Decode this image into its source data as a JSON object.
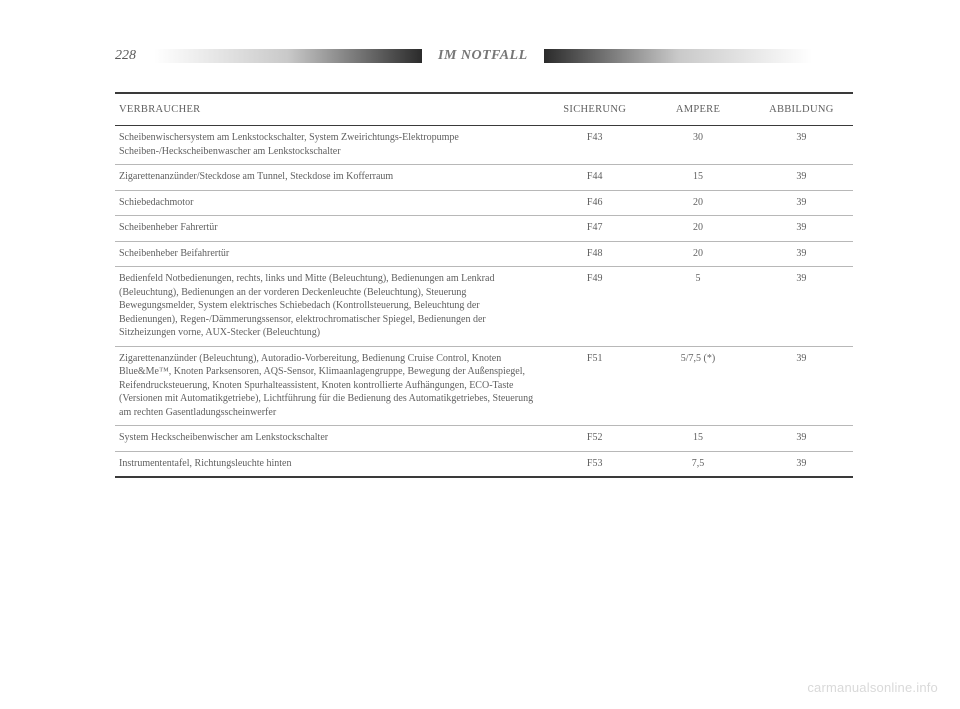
{
  "page_number": "228",
  "section_title": "IM NOTFALL",
  "columns": {
    "verbraucher": "VERBRAUCHER",
    "sicherung": "SICHERUNG",
    "ampere": "AMPERE",
    "abbildung": "ABBILDUNG"
  },
  "rows": [
    {
      "desc": "Scheibenwischersystem am Lenkstockschalter, System Zweirichtungs-Elektropumpe Scheiben-/Heckscheibenwascher am Lenkstockschalter",
      "fuse": "F43",
      "amp": "30",
      "fig": "39"
    },
    {
      "desc": "Zigarettenanzünder/Steckdose am Tunnel, Steckdose im Kofferraum",
      "fuse": "F44",
      "amp": "15",
      "fig": "39"
    },
    {
      "desc": "Schiebedachmotor",
      "fuse": "F46",
      "amp": "20",
      "fig": "39"
    },
    {
      "desc": "Scheibenheber Fahrertür",
      "fuse": "F47",
      "amp": "20",
      "fig": "39"
    },
    {
      "desc": "Scheibenheber Beifahrertür",
      "fuse": "F48",
      "amp": "20",
      "fig": "39"
    },
    {
      "desc": "Bedienfeld Notbedienungen, rechts, links und Mitte (Beleuchtung), Bedienungen am Lenkrad (Beleuchtung), Bedienungen an der vorderen Deckenleuchte (Beleuchtung), Steuerung Bewegungsmelder, System elektrisches Schiebedach (Kontrollsteuerung, Beleuchtung der Bedienungen), Regen-/Dämmerungssensor, elektrochromatischer Spiegel, Bedienungen der Sitzheizungen vorne, AUX-Stecker (Beleuchtung)",
      "fuse": "F49",
      "amp": "5",
      "fig": "39"
    },
    {
      "desc": "Zigarettenanzünder (Beleuchtung), Autoradio-Vorbereitung, Bedienung Cruise Control, Knoten Blue&Me™, Knoten Parksensoren, AQS-Sensor, Klimaanlagengruppe, Bewegung der Außenspiegel, Reifendrucksteuerung, Knoten Spurhalteassistent, Knoten kontrollierte Aufhängungen, ECO-Taste (Versionen mit Automatikgetriebe), Lichtführung für die Bedienung des Automatikgetriebes, Steuerung am rechten Gasentladungsscheinwerfer",
      "fuse": "F51",
      "amp": "5/7,5 (*)",
      "fig": "39"
    },
    {
      "desc": "System Heckscheibenwischer am Lenkstockschalter",
      "fuse": "F52",
      "amp": "15",
      "fig": "39"
    },
    {
      "desc": "Instrumententafel, Richtungsleuchte hinten",
      "fuse": "F53",
      "amp": "7,5",
      "fig": "39"
    }
  ],
  "watermark": "carmanualsonline.info"
}
